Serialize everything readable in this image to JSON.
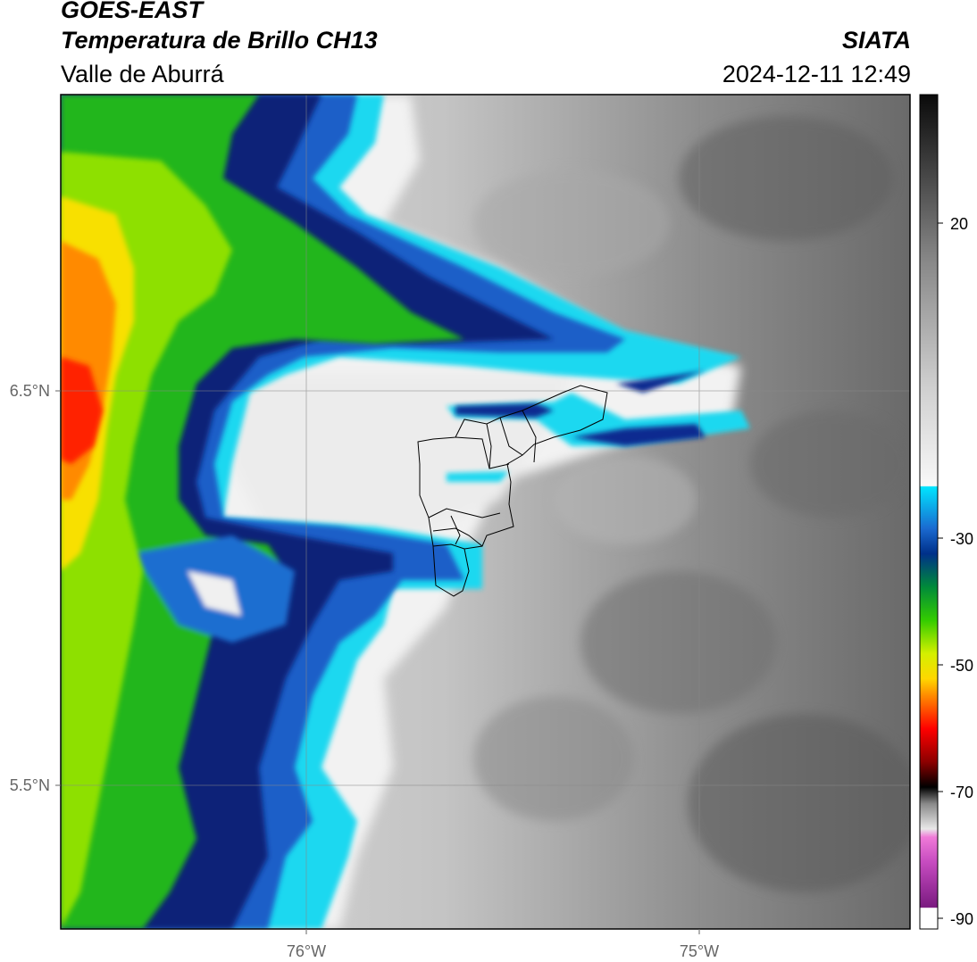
{
  "header": {
    "satellite": "GOES-EAST",
    "product": "Temperatura de Brillo CH13",
    "region": "Valle de Aburrá",
    "agency": "SIATA",
    "datetime": "2024-12-11 12:49"
  },
  "axes": {
    "lat_ticks": [
      "6.5°N",
      "5.5°N"
    ],
    "lon_ticks": [
      "76°W",
      "75°W"
    ]
  },
  "colorbar": {
    "ticks": [
      "20",
      "-30",
      "-50",
      "-70",
      "-90"
    ]
  }
}
